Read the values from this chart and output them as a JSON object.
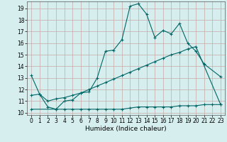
{
  "title": "",
  "xlabel": "Humidex (Indice chaleur)",
  "ylabel": "",
  "bg_color": "#d6eeee",
  "line_color": "#006666",
  "grid_color": "#c8a8a8",
  "xlim": [
    -0.5,
    23.5
  ],
  "ylim": [
    9.8,
    19.6
  ],
  "xticks": [
    0,
    1,
    2,
    3,
    4,
    5,
    6,
    7,
    8,
    9,
    10,
    11,
    12,
    13,
    14,
    15,
    16,
    17,
    18,
    19,
    20,
    21,
    22,
    23
  ],
  "yticks": [
    10,
    11,
    12,
    13,
    14,
    15,
    16,
    17,
    18,
    19
  ],
  "line1_x": [
    0,
    1,
    2,
    3,
    4,
    5,
    6,
    7,
    8,
    9,
    10,
    11,
    12,
    13,
    14,
    15,
    16,
    17,
    18,
    19,
    20,
    21,
    23
  ],
  "line1_y": [
    13.2,
    11.6,
    10.5,
    10.3,
    11.0,
    11.1,
    11.7,
    11.8,
    13.0,
    15.3,
    15.4,
    16.3,
    19.2,
    19.4,
    18.5,
    16.5,
    17.1,
    16.8,
    17.7,
    16.0,
    15.3,
    14.2,
    13.1
  ],
  "line2_x": [
    0,
    1,
    2,
    3,
    4,
    5,
    6,
    7,
    8,
    9,
    10,
    11,
    12,
    13,
    14,
    15,
    16,
    17,
    18,
    19,
    20,
    23
  ],
  "line2_y": [
    11.5,
    11.6,
    11.0,
    11.2,
    11.3,
    11.5,
    11.7,
    12.0,
    12.3,
    12.6,
    12.9,
    13.2,
    13.5,
    13.8,
    14.1,
    14.4,
    14.7,
    15.0,
    15.2,
    15.5,
    15.7,
    10.7
  ],
  "line3_x": [
    0,
    3,
    4,
    5,
    6,
    7,
    8,
    9,
    10,
    11,
    12,
    13,
    14,
    15,
    16,
    17,
    18,
    19,
    20,
    21,
    22,
    23
  ],
  "line3_y": [
    10.3,
    10.3,
    10.3,
    10.3,
    10.3,
    10.3,
    10.3,
    10.3,
    10.3,
    10.3,
    10.4,
    10.5,
    10.5,
    10.5,
    10.5,
    10.5,
    10.6,
    10.6,
    10.6,
    10.7,
    10.7,
    10.7
  ],
  "tick_fontsize": 5.5,
  "xlabel_fontsize": 6.5
}
